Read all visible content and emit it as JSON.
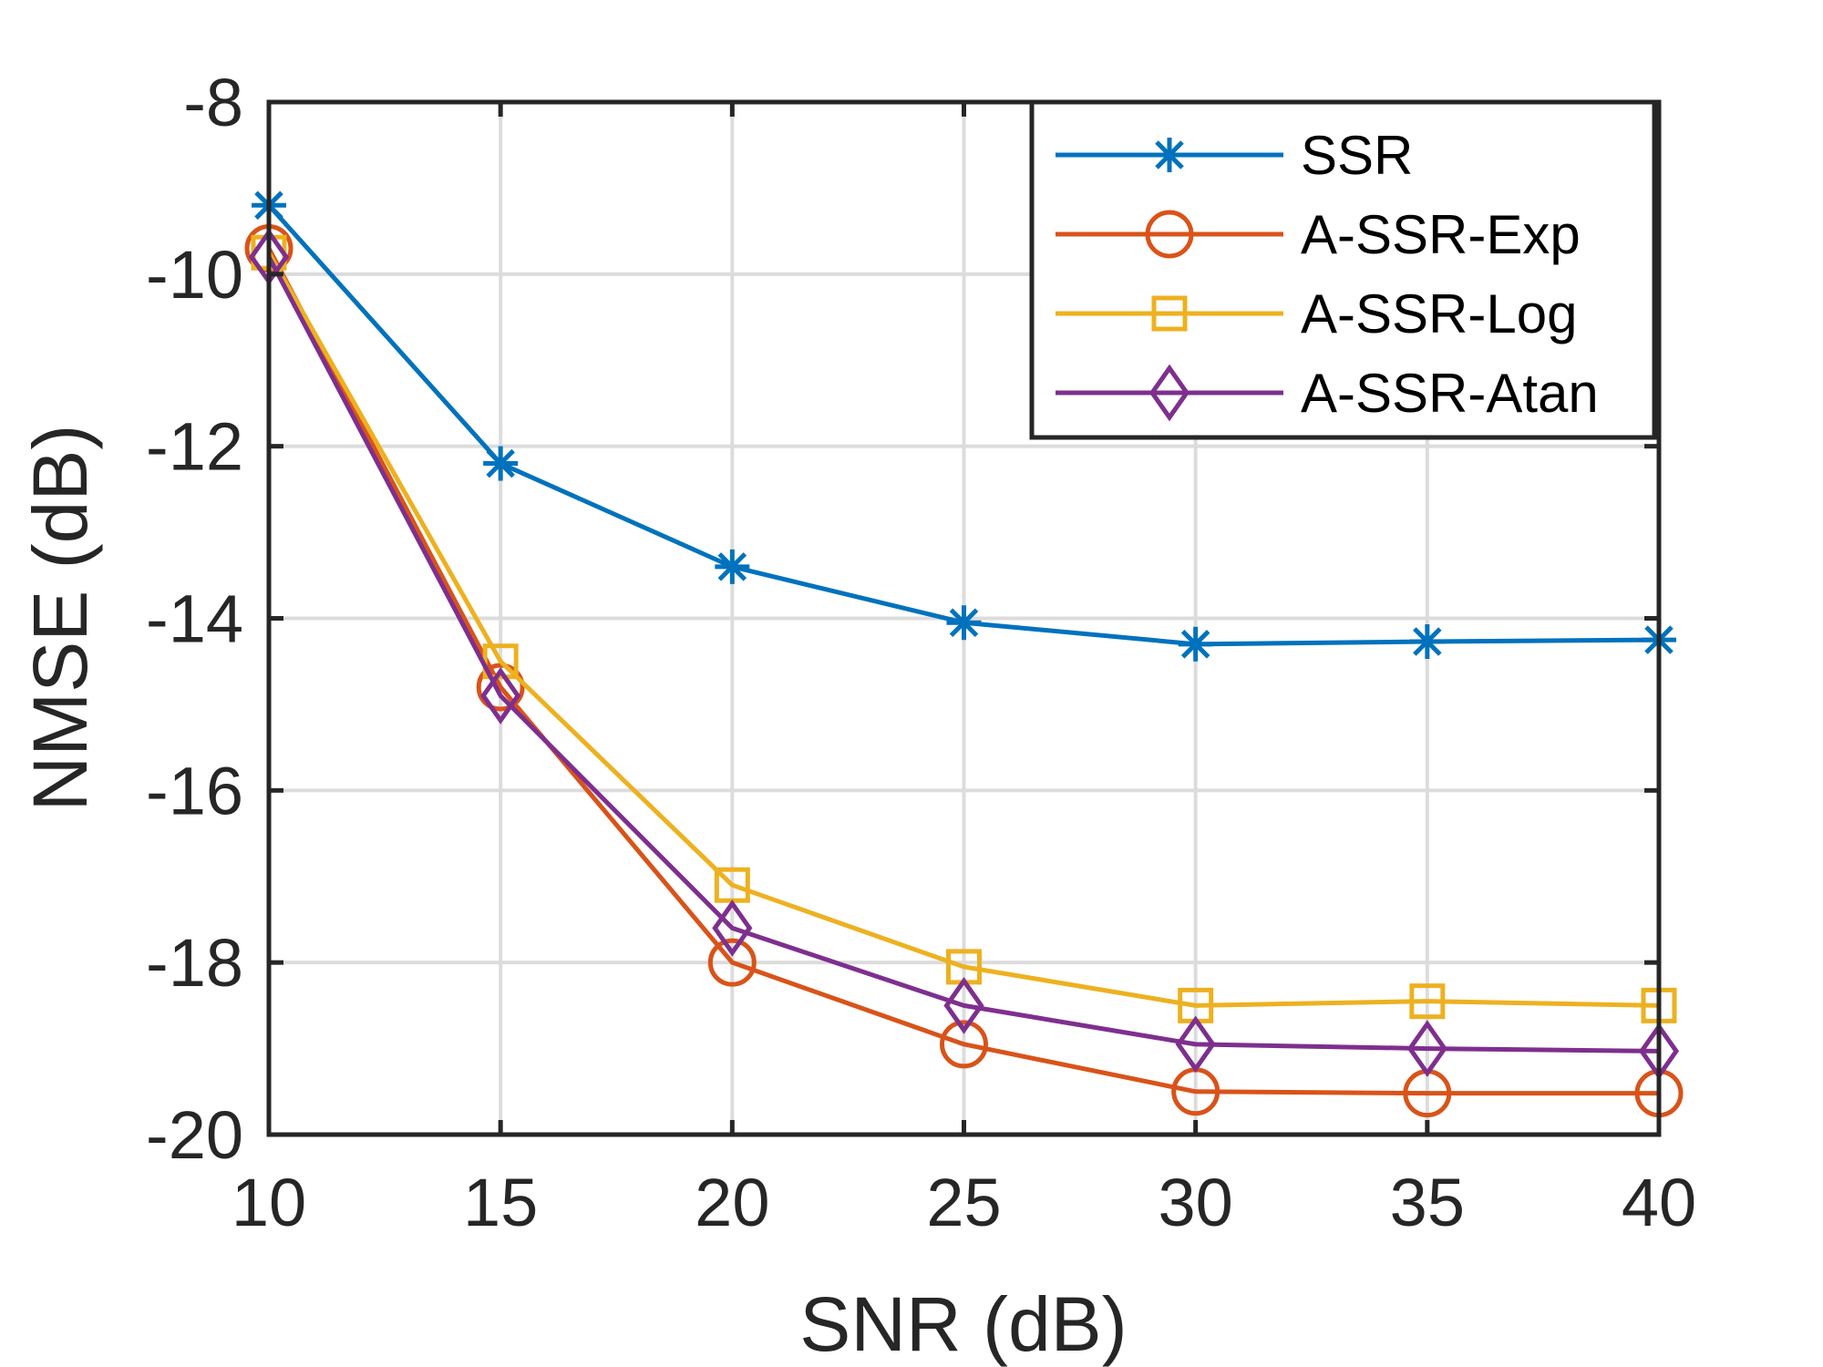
{
  "chart_data": {
    "type": "line",
    "title": "",
    "xlabel": "SNR (dB)",
    "ylabel": "NMSE (dB)",
    "x": [
      10,
      15,
      20,
      25,
      30,
      35,
      40
    ],
    "xlim": [
      10,
      40
    ],
    "ylim": [
      -20,
      -8
    ],
    "xticks": [
      10,
      15,
      20,
      25,
      30,
      35,
      40
    ],
    "yticks": [
      -20,
      -18,
      -16,
      -14,
      -12,
      -10,
      -8
    ],
    "xtick_labels": [
      "10",
      "15",
      "20",
      "25",
      "30",
      "35",
      "40"
    ],
    "ytick_labels": [
      "-20",
      "-18",
      "-16",
      "-14",
      "-12",
      "-10",
      "-8"
    ],
    "grid": true,
    "legend_position": "top-right",
    "series": [
      {
        "name": "SSR",
        "color": "#0072BD",
        "marker": "asterisk",
        "values": [
          -9.2,
          -12.2,
          -13.4,
          -14.05,
          -14.3,
          -14.27,
          -14.25
        ]
      },
      {
        "name": "A-SSR-Exp",
        "color": "#D95319",
        "marker": "circle",
        "values": [
          -9.7,
          -14.8,
          -18.0,
          -18.95,
          -19.5,
          -19.52,
          -19.52
        ]
      },
      {
        "name": "A-SSR-Log",
        "color": "#EDB120",
        "marker": "square",
        "values": [
          -9.75,
          -14.5,
          -17.1,
          -18.05,
          -18.5,
          -18.45,
          -18.5
        ]
      },
      {
        "name": "A-SSR-Atan",
        "color": "#7E2F8E",
        "marker": "diamond",
        "values": [
          -9.8,
          -14.9,
          -17.6,
          -18.5,
          -18.95,
          -19.0,
          -19.03
        ]
      }
    ]
  }
}
